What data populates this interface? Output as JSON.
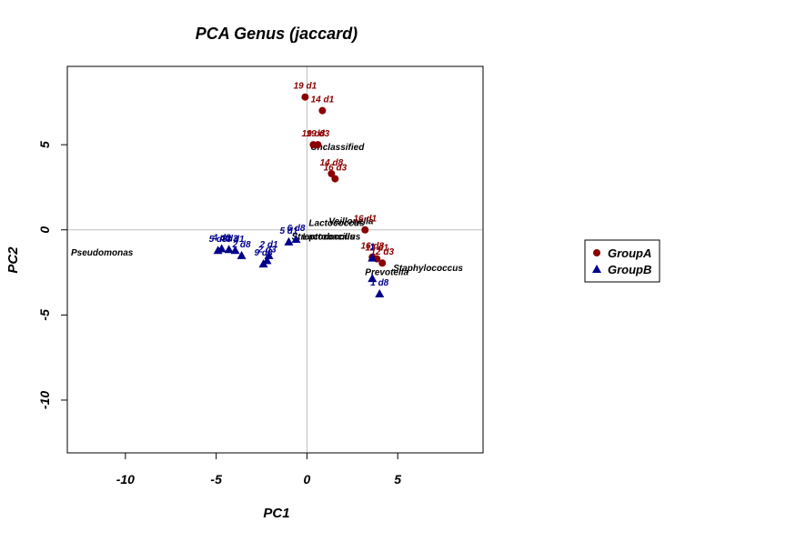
{
  "chart_data": {
    "type": "scatter",
    "title": "PCA Genus (jaccard)",
    "xlabel": "PC1",
    "ylabel": "PC2",
    "xlim": [
      -13.2,
      9.7
    ],
    "ylim": [
      -13.1,
      9.6
    ],
    "xticks": [
      -10,
      -5,
      0,
      5
    ],
    "yticks": [
      -10,
      -5,
      0,
      5
    ],
    "reference_lines": {
      "x": 0,
      "y": 0,
      "color": "#bfbfbf"
    },
    "legend": {
      "position": "right",
      "entries": [
        {
          "name": "GroupA",
          "marker": "circle",
          "color": "#8b0000"
        },
        {
          "name": "GroupB",
          "marker": "triangle",
          "color": "#00008b"
        }
      ]
    },
    "series": [
      {
        "name": "GroupA",
        "marker": "circle",
        "color": "#8b0000",
        "points": [
          {
            "x": -0.1,
            "y": 7.8,
            "label": "19 d1"
          },
          {
            "x": 0.85,
            "y": 7.0,
            "label": "14 d1"
          },
          {
            "x": 0.35,
            "y": 5.0,
            "label": "19 d8"
          },
          {
            "x": 0.6,
            "y": 5.0,
            "label": "19 d3"
          },
          {
            "x": 1.35,
            "y": 3.3,
            "label": "14 d8"
          },
          {
            "x": 1.55,
            "y": 3.0,
            "label": "16 d3"
          },
          {
            "x": 3.2,
            "y": 0.0,
            "label": "16 d1"
          },
          {
            "x": 3.6,
            "y": -1.6,
            "label": "16 d8"
          },
          {
            "x": 3.85,
            "y": -1.7,
            "label": "12 d1"
          },
          {
            "x": 4.15,
            "y": -1.95,
            "label": "12 d3"
          }
        ]
      },
      {
        "name": "GroupB",
        "marker": "triangle",
        "color": "#00008b",
        "points": [
          {
            "x": -4.9,
            "y": -1.2,
            "label": "5 d3"
          },
          {
            "x": -4.7,
            "y": -1.1,
            "label": "4 d8"
          },
          {
            "x": -4.3,
            "y": -1.15,
            "label": "4 d3"
          },
          {
            "x": -3.95,
            "y": -1.2,
            "label": "3 d1"
          },
          {
            "x": -3.6,
            "y": -1.5,
            "label": "2 d8"
          },
          {
            "x": -2.4,
            "y": -2.0,
            "label": "9 d8"
          },
          {
            "x": -2.2,
            "y": -1.8,
            "label": "2 d3"
          },
          {
            "x": -2.1,
            "y": -1.5,
            "label": "2 d1"
          },
          {
            "x": -1.0,
            "y": -0.7,
            "label": "5 d1"
          },
          {
            "x": -0.6,
            "y": -0.55,
            "label": "6 d8"
          },
          {
            "x": 3.6,
            "y": -1.65,
            "label": "1"
          },
          {
            "x": 3.6,
            "y": -2.85,
            "label": ""
          },
          {
            "x": 4.0,
            "y": -3.75,
            "label": "1 d8"
          }
        ]
      }
    ],
    "annotations": [
      {
        "x": -13.0,
        "y": -1.3,
        "text": "Pseudomonas"
      },
      {
        "x": 0.2,
        "y": 4.9,
        "text": "Unclassified"
      },
      {
        "x": 0.1,
        "y": 0.45,
        "text": "Lactococcus"
      },
      {
        "x": 1.2,
        "y": 0.55,
        "text": "Veillonella"
      },
      {
        "x": -0.85,
        "y": -0.35,
        "text": "Streptococcus"
      },
      {
        "x": -0.25,
        "y": -0.35,
        "text": "Lactobacillus"
      },
      {
        "x": 4.75,
        "y": -2.2,
        "text": "Staphylococcus"
      },
      {
        "x": 3.2,
        "y": -2.45,
        "text": "Prevotella"
      }
    ]
  }
}
